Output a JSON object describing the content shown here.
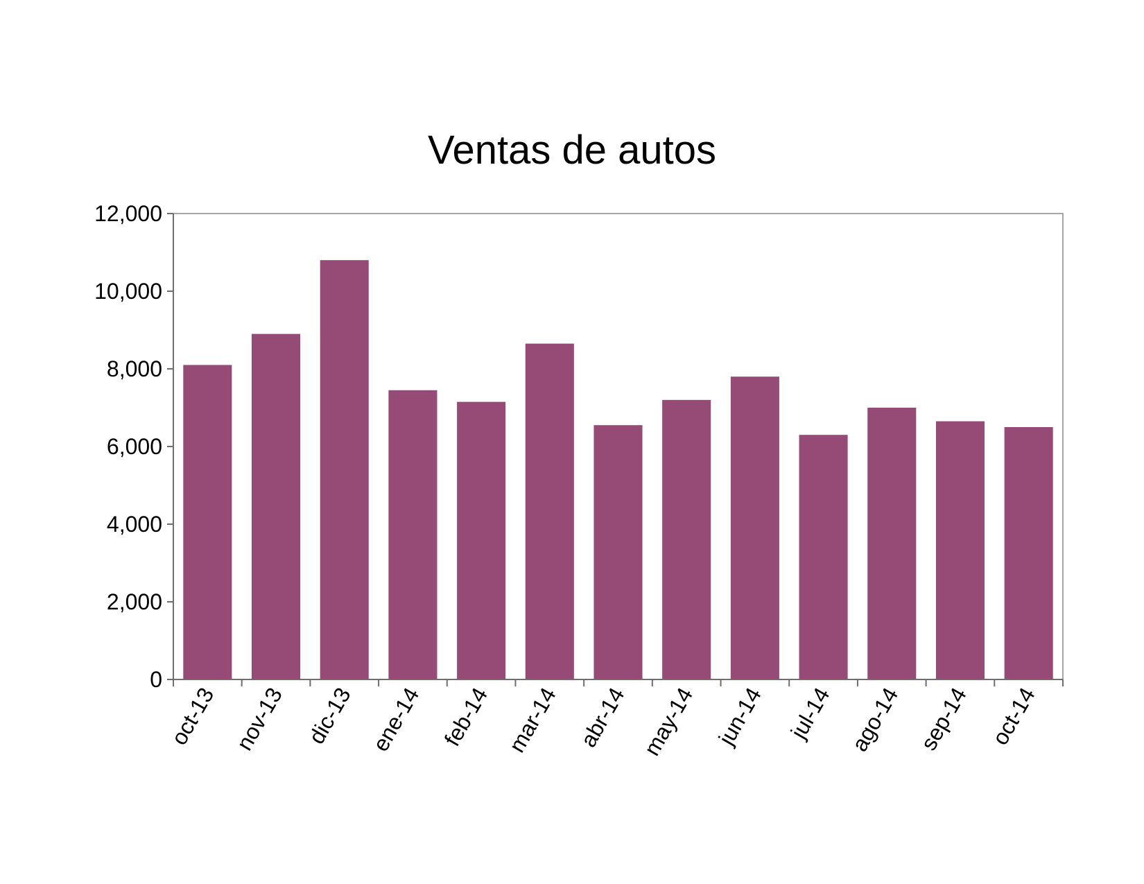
{
  "chart_data": {
    "type": "bar",
    "title": "Ventas de autos",
    "xlabel": "",
    "ylabel": "",
    "categories": [
      "oct-13",
      "nov-13",
      "dic-13",
      "ene-14",
      "feb-14",
      "mar-14",
      "abr-14",
      "may-14",
      "jun-14",
      "jul-14",
      "ago-14",
      "sep-14",
      "oct-14"
    ],
    "values": [
      8100,
      8900,
      10800,
      7450,
      7150,
      8650,
      6550,
      7200,
      7800,
      6300,
      7000,
      6650,
      6500
    ],
    "ylim": [
      0,
      12000
    ],
    "yticks": [
      0,
      2000,
      4000,
      6000,
      8000,
      10000,
      12000
    ],
    "ytick_labels": [
      "0",
      "2,000",
      "4,000",
      "6,000",
      "8,000",
      "10,000",
      "12,000"
    ],
    "grid": false,
    "legend": "none",
    "bar_color": "#954b76"
  }
}
